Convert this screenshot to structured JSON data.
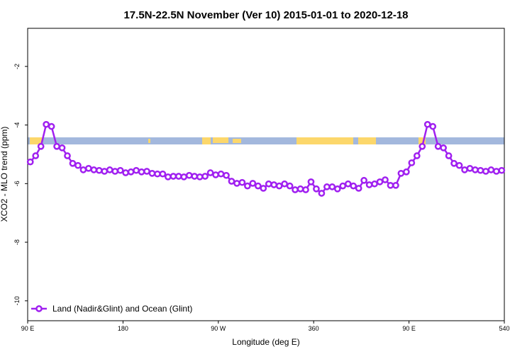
{
  "chart_data": {
    "type": "line",
    "title": "17.5N-22.5N November (Ver 10)   2015-01-01 to 2020-12-18",
    "xlabel": "Longitude (deg E)",
    "ylabel": "XCO2 - MLO trend (ppm)",
    "x": [
      92.5,
      97.5,
      102.5,
      107.5,
      112.5,
      117.5,
      122.5,
      127.5,
      132.5,
      137.5,
      142.5,
      147.5,
      152.5,
      157.5,
      162.5,
      167.5,
      172.5,
      177.5,
      182.5,
      187.5,
      192.5,
      197.5,
      202.5,
      207.5,
      212.5,
      217.5,
      222.5,
      227.5,
      232.5,
      237.5,
      242.5,
      247.5,
      252.5,
      257.5,
      262.5,
      267.5,
      272.5,
      277.5,
      282.5,
      287.5,
      292.5,
      297.5,
      302.5,
      307.5,
      312.5,
      317.5,
      322.5,
      327.5,
      332.5,
      337.5,
      342.5,
      347.5,
      352.5,
      357.5,
      362.5,
      367.5,
      372.5,
      377.5,
      382.5,
      387.5,
      392.5,
      397.5,
      402.5,
      407.5,
      412.5,
      417.5,
      422.5,
      427.5,
      432.5,
      437.5,
      442.5,
      447.5,
      452.5,
      457.5,
      462.5,
      467.5,
      472.5,
      477.5,
      482.5,
      487.5,
      492.5,
      497.5,
      502.5,
      507.5,
      512.5,
      517.5,
      522.5,
      527.5,
      532.5,
      537.5
    ],
    "series": [
      {
        "name": "Land (Nadir&Glint) and Ocean (Glint)",
        "color": "#a020f0",
        "values": [
          -5.26,
          -5.05,
          -4.73,
          -3.98,
          -4.05,
          -4.73,
          -4.78,
          -5.05,
          -5.31,
          -5.38,
          -5.53,
          -5.48,
          -5.53,
          -5.55,
          -5.58,
          -5.53,
          -5.58,
          -5.55,
          -5.63,
          -5.6,
          -5.55,
          -5.6,
          -5.58,
          -5.65,
          -5.67,
          -5.67,
          -5.77,
          -5.75,
          -5.75,
          -5.77,
          -5.72,
          -5.75,
          -5.77,
          -5.75,
          -5.63,
          -5.7,
          -5.67,
          -5.72,
          -5.92,
          -5.99,
          -5.96,
          -6.08,
          -5.99,
          -6.08,
          -6.16,
          -6.01,
          -6.04,
          -6.08,
          -6.01,
          -6.08,
          -6.21,
          -6.18,
          -6.21,
          -5.94,
          -6.18,
          -6.33,
          -6.11,
          -6.11,
          -6.18,
          -6.08,
          -6.01,
          -6.08,
          -6.16,
          -5.89,
          -6.04,
          -6.01,
          -5.94,
          -5.87,
          -6.06,
          -6.06,
          -5.65,
          -5.6,
          -5.29,
          -5.05,
          -4.73,
          -3.98,
          -4.05,
          -4.73,
          -4.78,
          -5.05,
          -5.31,
          -5.38,
          -5.53,
          -5.48,
          -5.53,
          -5.55,
          -5.58,
          -5.53,
          -5.58,
          -5.55
        ]
      }
    ],
    "xlim": [
      90,
      540
    ],
    "xticks": [
      {
        "value": 90,
        "label": "90 E"
      },
      180,
      {
        "value": 270,
        "label": "90 W"
      },
      360,
      {
        "value": 450,
        "label": "90 E"
      },
      540
    ],
    "ylim": [
      -10.68,
      -0.7
    ],
    "yticks": [
      -10,
      -8,
      -6,
      -4,
      -2
    ],
    "legend": "bottom-left"
  }
}
